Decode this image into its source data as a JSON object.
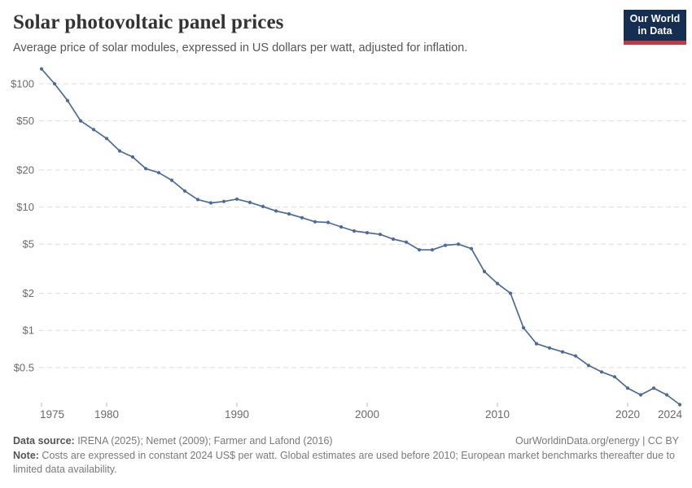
{
  "header": {
    "title": "Solar photovoltaic panel prices",
    "subtitle": "Average price of solar modules, expressed in US dollars per watt, adjusted for inflation."
  },
  "logo": {
    "line1": "Our World",
    "line2": "in Data",
    "bg_color": "#152e52",
    "accent_color": "#c0393e"
  },
  "chart_data": {
    "type": "line",
    "title": "Solar photovoltaic panel prices",
    "subtitle": "Average price of solar modules, expressed in US dollars per watt, adjusted for inflation.",
    "xlabel": "",
    "ylabel": "US$ per watt",
    "y_scale": "log",
    "grid": true,
    "legend": "none",
    "x_range": [
      1975,
      2024
    ],
    "ylim": [
      0.2,
      150
    ],
    "line_color": "#4c6a9c",
    "grid_color": "#dddddd",
    "tick_label_color": "#6b6b6b",
    "x": [
      1975,
      1976,
      1977,
      1978,
      1979,
      1980,
      1981,
      1982,
      1983,
      1984,
      1985,
      1986,
      1987,
      1988,
      1989,
      1990,
      1991,
      1992,
      1993,
      1994,
      1995,
      1996,
      1997,
      1998,
      1999,
      2000,
      2001,
      2002,
      2003,
      2004,
      2005,
      2006,
      2007,
      2008,
      2009,
      2010,
      2011,
      2012,
      2013,
      2014,
      2015,
      2016,
      2017,
      2018,
      2019,
      2020,
      2021,
      2022,
      2023,
      2024
    ],
    "values": [
      132,
      100,
      73,
      50,
      42.5,
      36,
      28.5,
      25.5,
      20.5,
      19,
      16.5,
      13.5,
      11.5,
      10.8,
      11.1,
      11.6,
      10.9,
      10.1,
      9.3,
      8.8,
      8.2,
      7.6,
      7.5,
      6.9,
      6.4,
      6.2,
      6.0,
      5.5,
      5.2,
      4.5,
      4.5,
      4.9,
      5.0,
      4.6,
      3.0,
      2.4,
      2.0,
      1.05,
      0.78,
      0.72,
      0.67,
      0.62,
      0.52,
      0.46,
      0.42,
      0.34,
      0.3,
      0.34,
      0.3,
      0.25
    ],
    "y_ticks": {
      "values": [
        100,
        50,
        20,
        10,
        5,
        2,
        1,
        0.5
      ],
      "labels": [
        "$100",
        "$50",
        "$20",
        "$10",
        "$5",
        "$2",
        "$1",
        "$0.5"
      ]
    },
    "x_ticks": {
      "values": [
        1975,
        1980,
        1990,
        2000,
        2010,
        2020,
        2024
      ],
      "labels": [
        "1975",
        "1980",
        "1990",
        "2000",
        "2010",
        "2020",
        "2024"
      ]
    }
  },
  "footer": {
    "datasource_label": "Data source:",
    "datasource_value": " IRENA (2025); Nemet (2009); Farmer and Lafond (2016)",
    "link": "OurWorldinData.org/energy | CC BY",
    "note_label": "Note:",
    "note_value": " Costs are expressed in constant 2024 US$ per watt. Global estimates are used before 2010; European market benchmarks thereafter due to limited data availability."
  }
}
